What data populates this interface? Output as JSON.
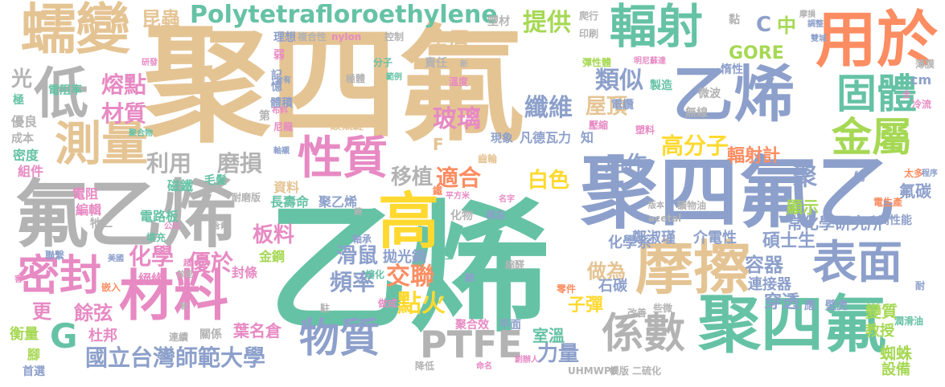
{
  "palette": {
    "gold": "#e5c494",
    "green": "#66c2a5",
    "orange": "#fc8d62",
    "blue": "#8da0cb",
    "pink": "#e78ac3",
    "lime": "#a6d854",
    "yellow": "#ffd92f",
    "gray": "#b3b3b3"
  },
  "words": [
    {
      "text": "聚四氟",
      "color": "gold"
    },
    {
      "text": "乙烯",
      "color": "green"
    },
    {
      "text": "聚四氟乙",
      "color": "blue"
    },
    {
      "text": "氟乙烯",
      "color": "gray"
    },
    {
      "text": "聚四氟",
      "color": "green"
    },
    {
      "text": "摩擦",
      "color": "gold"
    },
    {
      "text": "乙烯",
      "color": "blue"
    },
    {
      "text": "用於",
      "color": "orange"
    },
    {
      "text": "蠕變",
      "color": "gold"
    },
    {
      "text": "輻射",
      "color": "green"
    },
    {
      "text": "材料",
      "color": "pink"
    },
    {
      "text": "高",
      "color": "yellow"
    },
    {
      "text": "低",
      "color": "gray"
    },
    {
      "text": "測量",
      "color": "gold"
    },
    {
      "text": "表面",
      "color": "blue"
    },
    {
      "text": "固體",
      "color": "green"
    },
    {
      "text": "金屬",
      "color": "lime"
    },
    {
      "text": "係數",
      "color": "gray"
    },
    {
      "text": "性質",
      "color": "pink"
    },
    {
      "text": "物質",
      "color": "blue"
    },
    {
      "text": "PTFE",
      "color": "gray"
    },
    {
      "text": "密封",
      "color": "pink"
    },
    {
      "text": "Polytetrafloroethylene",
      "color": "green"
    },
    {
      "text": "國立台灣師範大學",
      "color": "blue"
    },
    {
      "text": "G",
      "color": "green"
    },
    {
      "text": "磨損",
      "color": "gray"
    },
    {
      "text": "利用",
      "color": "gray"
    },
    {
      "text": "熔點",
      "color": "pink"
    },
    {
      "text": "材質",
      "color": "pink"
    },
    {
      "text": "類似",
      "color": "blue"
    },
    {
      "text": "纖維",
      "color": "blue"
    },
    {
      "text": "屋頂",
      "color": "gold"
    },
    {
      "text": "玻璃",
      "color": "pink"
    },
    {
      "text": "高分子",
      "color": "yellow"
    },
    {
      "text": "提供",
      "color": "lime"
    },
    {
      "text": "塗層",
      "color": "gold"
    },
    {
      "text": "移植",
      "color": "gray"
    },
    {
      "text": "適合",
      "color": "orange"
    },
    {
      "text": "白色",
      "color": "yellow"
    },
    {
      "text": "用作",
      "color": "blue"
    },
    {
      "text": "GORE",
      "color": "lime"
    },
    {
      "text": "中",
      "color": "lime"
    },
    {
      "text": "C",
      "color": "blue"
    },
    {
      "text": "昆蟲",
      "color": "gold"
    },
    {
      "text": "化學",
      "color": "pink"
    },
    {
      "text": "優於",
      "color": "pink"
    },
    {
      "text": "板料",
      "color": "pink"
    },
    {
      "text": "滑鼠",
      "color": "blue"
    },
    {
      "text": "頻率",
      "color": "blue"
    },
    {
      "text": "交聯",
      "color": "orange"
    },
    {
      "text": "點火",
      "color": "yellow"
    },
    {
      "text": "拋光鋼",
      "color": "blue"
    },
    {
      "text": "輻射計",
      "color": "orange"
    },
    {
      "text": "聚",
      "color": "blue"
    },
    {
      "text": "顯示",
      "color": "lime"
    },
    {
      "text": "氟碳",
      "color": "blue"
    },
    {
      "text": "鄭淑瑾",
      "color": "blue"
    },
    {
      "text": "介電性",
      "color": "blue"
    },
    {
      "text": "碩士生",
      "color": "blue"
    },
    {
      "text": "常化學研究所",
      "color": "blue"
    },
    {
      "text": "化學系",
      "color": "blue"
    },
    {
      "text": "做為",
      "color": "gold"
    },
    {
      "text": "容器",
      "color": "blue"
    },
    {
      "text": "子彈",
      "color": "yellow"
    },
    {
      "text": "石碳",
      "color": "blue"
    },
    {
      "text": "連接器",
      "color": "blue"
    },
    {
      "text": "穿透",
      "color": "blue"
    },
    {
      "text": "力量",
      "color": "blue"
    },
    {
      "text": "室溫",
      "color": "green"
    },
    {
      "text": "餘弦",
      "color": "pink"
    },
    {
      "text": "更",
      "color": "pink"
    },
    {
      "text": "杜邦",
      "color": "pink"
    },
    {
      "text": "葉名倉",
      "color": "pink"
    },
    {
      "text": "長壽命",
      "color": "green"
    },
    {
      "text": "聚乙烯",
      "color": "blue"
    },
    {
      "text": "資料",
      "color": "gold"
    },
    {
      "text": "金鋼",
      "color": "lime"
    },
    {
      "text": "封條",
      "color": "pink"
    },
    {
      "text": "絕緣",
      "color": "pink"
    },
    {
      "text": "衡量",
      "color": "lime"
    },
    {
      "text": "腳",
      "color": "lime"
    },
    {
      "text": "首選",
      "color": "blue"
    },
    {
      "text": "變質",
      "color": "lime"
    },
    {
      "text": "教授",
      "color": "lime"
    },
    {
      "text": "蜘蛛",
      "color": "lime"
    },
    {
      "text": "設備",
      "color": "lime"
    },
    {
      "text": "電阻",
      "color": "pink"
    },
    {
      "text": "編輯",
      "color": "pink"
    },
    {
      "text": "電路板",
      "color": "green"
    },
    {
      "text": "磁鐵",
      "color": "green"
    },
    {
      "text": "毛髮",
      "color": "green"
    },
    {
      "text": "光",
      "color": "gray"
    },
    {
      "text": "電阻率",
      "color": "green"
    },
    {
      "text": "極",
      "color": "green"
    },
    {
      "text": "優良",
      "color": "gray"
    },
    {
      "text": "成本",
      "color": "gray"
    },
    {
      "text": "密度",
      "color": "green"
    },
    {
      "text": "組件",
      "color": "pink"
    },
    {
      "text": "理想",
      "color": "blue"
    },
    {
      "text": "複合性",
      "color": "gray"
    },
    {
      "text": "nylon",
      "color": "pink"
    },
    {
      "text": "控制",
      "color": "gray"
    },
    {
      "text": "記憶",
      "color": "blue"
    },
    {
      "text": "體積",
      "color": "blue"
    },
    {
      "text": "第",
      "color": "gray"
    },
    {
      "text": "碳氟鍵",
      "color": "gold"
    },
    {
      "text": "現象",
      "color": "blue"
    },
    {
      "text": "凡德瓦力",
      "color": "blue"
    },
    {
      "text": "知",
      "color": "blue"
    },
    {
      "text": "塑材",
      "color": "gray"
    },
    {
      "text": "爬行",
      "color": "gray"
    },
    {
      "text": "印刷",
      "color": "gray"
    },
    {
      "text": "黏",
      "color": "gray"
    },
    {
      "text": "摩損",
      "color": "gray"
    },
    {
      "text": "溫度",
      "color": "pink"
    },
    {
      "text": "責任",
      "color": "gray"
    },
    {
      "text": "製造",
      "color": "green"
    },
    {
      "text": "電纜",
      "color": "blue"
    },
    {
      "text": "壓縮",
      "color": "pink"
    },
    {
      "text": "塑料",
      "color": "pink"
    },
    {
      "text": "無線",
      "color": "gray"
    },
    {
      "text": "微波",
      "color": "gray"
    },
    {
      "text": "惰性",
      "color": "blue"
    },
    {
      "text": "冷流",
      "color": "pink"
    },
    {
      "text": "cm",
      "color": "blue"
    },
    {
      "text": "極體",
      "color": "gray"
    },
    {
      "text": "分子",
      "color": "green"
    },
    {
      "text": "高性能",
      "color": "blue"
    },
    {
      "text": "應",
      "color": "blue"
    },
    {
      "text": "壁虎",
      "color": "blue"
    },
    {
      "text": "縮醛",
      "color": "gray"
    },
    {
      "text": "熔化",
      "color": "green"
    },
    {
      "text": "彈性",
      "color": "green"
    },
    {
      "text": "聚合效",
      "color": "pink"
    },
    {
      "text": "平面",
      "color": "blue"
    },
    {
      "text": "UHMWPE",
      "color": "gray"
    },
    {
      "text": "降低",
      "color": "gray"
    },
    {
      "text": "驗",
      "color": "blue"
    },
    {
      "text": "化物",
      "color": "gray"
    },
    {
      "text": "二",
      "color": "gray"
    },
    {
      "text": "牠",
      "color": "gray"
    },
    {
      "text": "填充",
      "color": "green"
    },
    {
      "text": "嵌入",
      "color": "orange"
    },
    {
      "text": "聯繫",
      "color": "blue"
    },
    {
      "text": "連續",
      "color": "gray"
    },
    {
      "text": "關係",
      "color": "gray"
    },
    {
      "text": "改善",
      "color": "gray"
    },
    {
      "text": "acetal",
      "color": "gray"
    },
    {
      "text": "尼龍",
      "color": "pink"
    },
    {
      "text": "齒輪",
      "color": "gold"
    },
    {
      "text": "耐磨版",
      "color": "gray"
    },
    {
      "text": "軸承",
      "color": "blue"
    },
    {
      "text": "鐵",
      "color": "orange"
    },
    {
      "text": "彈性體",
      "color": "lime"
    },
    {
      "text": "明尼蘇達",
      "color": "pink"
    },
    {
      "text": "太多",
      "color": "orange"
    },
    {
      "text": "程序",
      "color": "blue"
    },
    {
      "text": "潤滑油",
      "color": "green"
    },
    {
      "text": "礦物油",
      "color": "gray"
    },
    {
      "text": "模版",
      "color": "gray"
    },
    {
      "text": "二硫化",
      "color": "gray"
    },
    {
      "text": "創辦人",
      "color": "pink"
    },
    {
      "text": "做成",
      "color": "pink"
    },
    {
      "text": "命名",
      "color": "pink"
    },
    {
      "text": "名字",
      "color": "pink"
    },
    {
      "text": "平方米",
      "color": "pink"
    },
    {
      "text": "零件",
      "color": "orange"
    },
    {
      "text": "稱為",
      "color": "blue"
    },
    {
      "text": "版本",
      "color": "gray"
    },
    {
      "text": "耐",
      "color": "blue"
    },
    {
      "text": "研發",
      "color": "pink"
    },
    {
      "text": "含有",
      "color": "blue"
    },
    {
      "text": "布料",
      "color": "pink"
    },
    {
      "text": "聚合物",
      "color": "green"
    },
    {
      "text": "含氟",
      "color": "gray"
    },
    {
      "text": "軸襯",
      "color": "blue"
    },
    {
      "text": "電生產",
      "color": "orange"
    },
    {
      "text": "薄膜",
      "color": "gray"
    },
    {
      "text": "範例",
      "color": "green"
    },
    {
      "text": "弱",
      "color": "pink"
    },
    {
      "text": "雙城",
      "color": "blue"
    },
    {
      "text": "調整",
      "color": "blue"
    },
    {
      "text": "美國",
      "color": "blue"
    },
    {
      "text": "效能",
      "color": "gray"
    },
    {
      "text": "害",
      "color": "pink"
    },
    {
      "text": "些微",
      "color": "gray"
    },
    {
      "text": "公司",
      "color": "pink"
    },
    {
      "text": "TEX",
      "color": "gray"
    },
    {
      "text": "F",
      "color": "gold"
    },
    {
      "text": "新",
      "color": "gray"
    },
    {
      "text": "全",
      "color": "pink"
    },
    {
      "text": "駐",
      "color": "gray"
    },
    {
      "text": "超",
      "color": "pink"
    },
    {
      "text": "軟",
      "color": "gray"
    },
    {
      "text": "物",
      "color": "blue"
    },
    {
      "text": "鏡",
      "color": "gray"
    }
  ]
}
